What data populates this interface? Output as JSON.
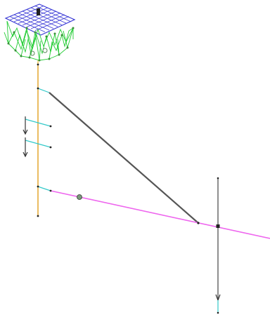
{
  "viewport": {
    "background": "#ffffff"
  },
  "colors": {
    "grid": "#3b3bd6",
    "frame": "#22cc33",
    "mast": "#e0a020",
    "cable": "#555555",
    "boom": "#ee66ee",
    "cyan": "#33c9c9",
    "node": "#222222",
    "arrow": "#333333",
    "hook": "#5a8a5a"
  },
  "icons": {
    "load_arrow": "arrow-down-icon",
    "node_marker": "node-dot-icon",
    "hook_marker": "hook-sphere-icon"
  }
}
